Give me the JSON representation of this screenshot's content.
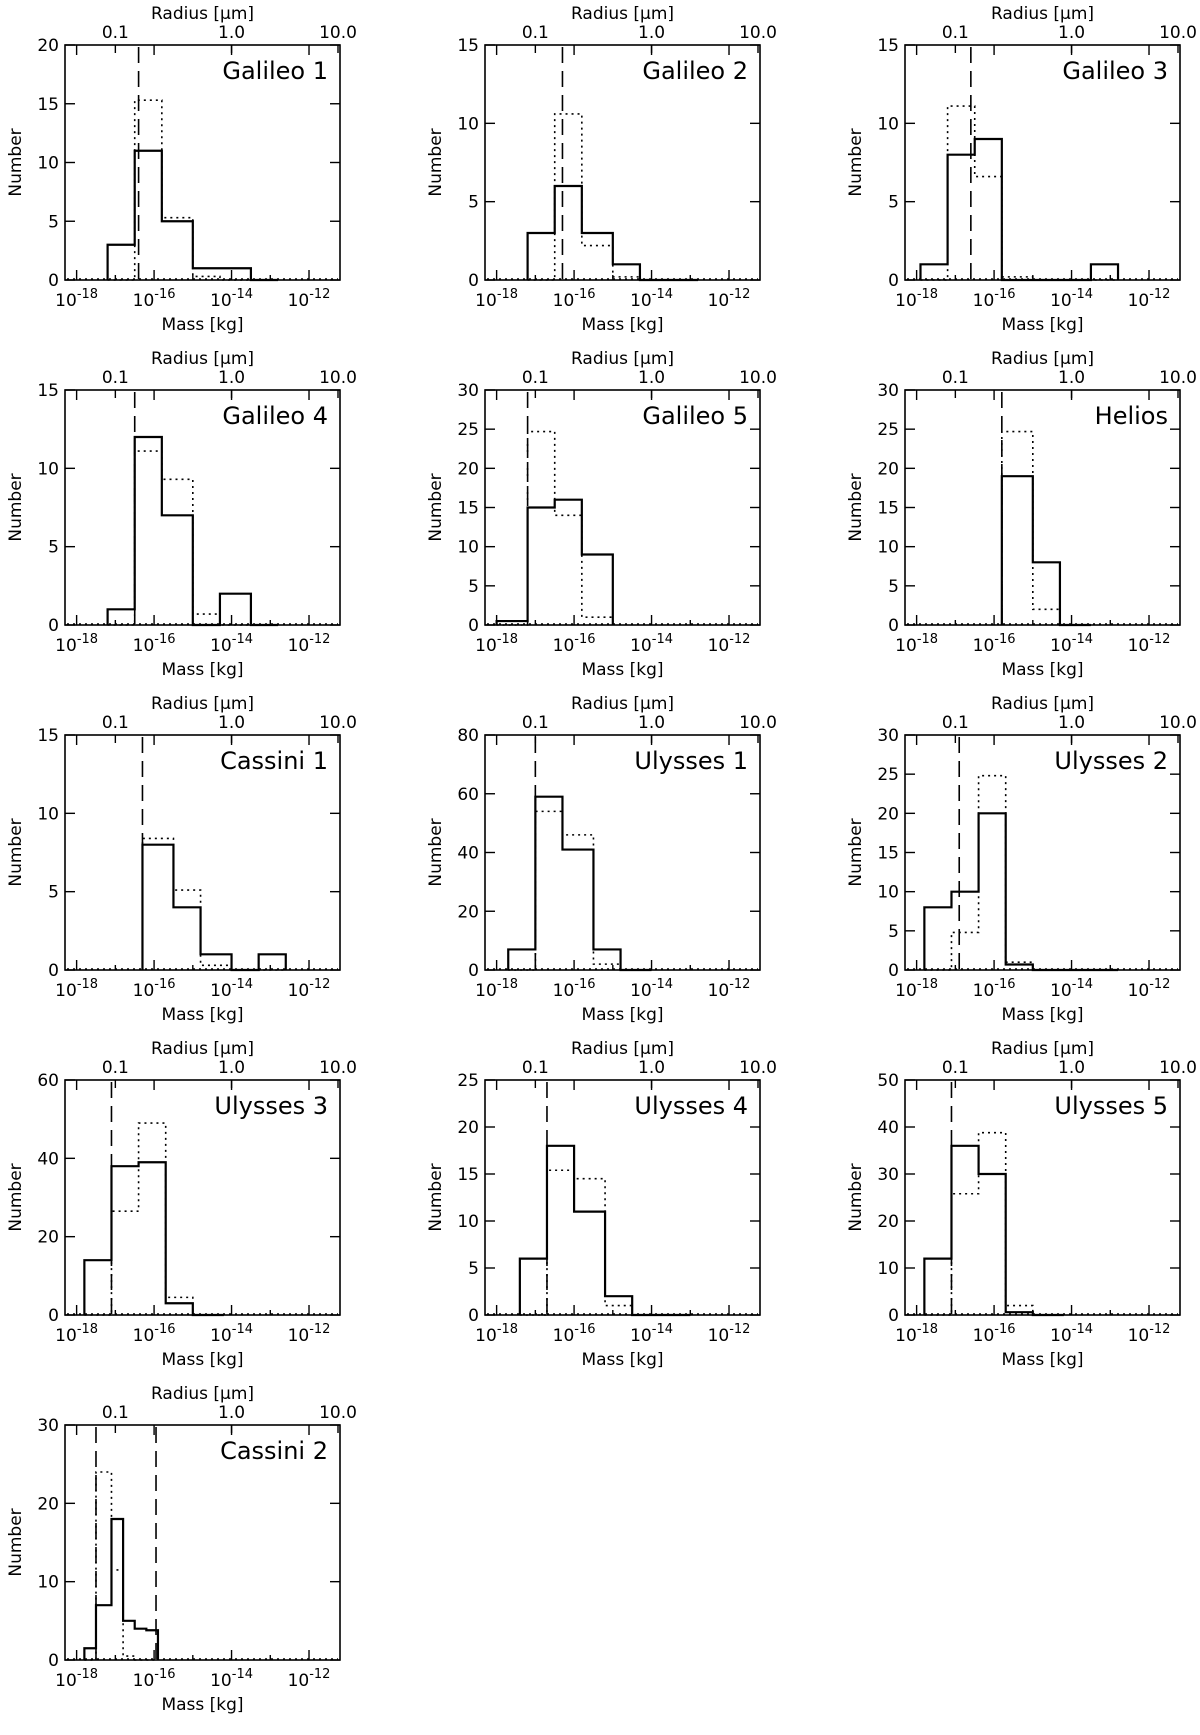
{
  "chart_data": [
    {
      "type": "histogram",
      "title": "Galileo 1",
      "ylim": [
        0,
        20
      ],
      "yticks": [
        0,
        5,
        10,
        15,
        20
      ],
      "xlabel": "Mass [kg]",
      "ylabel": "Number",
      "x2label": "Radius [μm]",
      "xticks": [
        "10^-18",
        "10^-16",
        "10^-14",
        "10^-12"
      ],
      "x2ticks": [
        "0.1",
        "1.0",
        "10.0"
      ],
      "edges": [
        -17.2,
        -16.5,
        -15.8,
        -15.0,
        -14.3,
        -13.5,
        -12.8
      ],
      "solid": [
        3,
        11,
        5,
        1,
        1,
        0
      ],
      "dotted": [
        0,
        15.3,
        5.3,
        0.3,
        0,
        0
      ],
      "dashed_lines": [
        -16.4
      ]
    },
    {
      "type": "histogram",
      "title": "Galileo 2",
      "ylim": [
        0,
        15
      ],
      "yticks": [
        0,
        5,
        10,
        15
      ],
      "xlabel": "Mass [kg]",
      "ylabel": "Number",
      "x2label": "Radius [μm]",
      "xticks": [
        "10^-18",
        "10^-16",
        "10^-14",
        "10^-12"
      ],
      "x2ticks": [
        "0.1",
        "1.0",
        "10.0"
      ],
      "edges": [
        -17.2,
        -16.5,
        -15.8,
        -15.0,
        -14.3,
        -13.5,
        -12.8
      ],
      "solid": [
        3,
        6,
        3,
        1,
        0,
        0
      ],
      "dotted": [
        0,
        10.6,
        2.2,
        0.2,
        0,
        0
      ],
      "dashed_lines": [
        -16.3
      ]
    },
    {
      "type": "histogram",
      "title": "Galileo 3",
      "ylim": [
        0,
        15
      ],
      "yticks": [
        0,
        5,
        10,
        15
      ],
      "xlabel": "Mass [kg]",
      "ylabel": "Number",
      "x2label": "Radius [μm]",
      "xticks": [
        "10^-18",
        "10^-16",
        "10^-14",
        "10^-12"
      ],
      "x2ticks": [
        "0.1",
        "1.0",
        "10.0"
      ],
      "edges": [
        -17.9,
        -17.2,
        -16.5,
        -15.8,
        -15.0,
        -14.3,
        -13.5,
        -12.8
      ],
      "solid": [
        1,
        8,
        9,
        0,
        0,
        0,
        1
      ],
      "dotted": [
        0,
        11.1,
        6.6,
        0.2,
        0,
        0,
        0
      ],
      "dashed_lines": [
        -16.6
      ]
    },
    {
      "type": "histogram",
      "title": "Galileo 4",
      "ylim": [
        0,
        15
      ],
      "yticks": [
        0,
        5,
        10,
        15
      ],
      "xlabel": "Mass [kg]",
      "ylabel": "Number",
      "x2label": "Radius [μm]",
      "xticks": [
        "10^-18",
        "10^-16",
        "10^-14",
        "10^-12"
      ],
      "x2ticks": [
        "0.1",
        "1.0",
        "10.0"
      ],
      "edges": [
        -17.2,
        -16.5,
        -15.8,
        -15.0,
        -14.3,
        -13.5,
        -12.8
      ],
      "solid": [
        1,
        12,
        7,
        0,
        2,
        0
      ],
      "dotted": [
        0,
        11.1,
        9.3,
        0.7,
        0,
        0
      ],
      "dashed_lines": [
        -16.5
      ]
    },
    {
      "type": "histogram",
      "title": "Galileo 5",
      "ylim": [
        0,
        30
      ],
      "yticks": [
        0,
        5,
        10,
        15,
        20,
        25,
        30
      ],
      "xlabel": "Mass [kg]",
      "ylabel": "Number",
      "x2label": "Radius [μm]",
      "xticks": [
        "10^-18",
        "10^-16",
        "10^-14",
        "10^-12"
      ],
      "x2ticks": [
        "0.1",
        "1.0",
        "10.0"
      ],
      "edges": [
        -18.0,
        -17.2,
        -16.5,
        -15.8,
        -15.0
      ],
      "solid": [
        0.5,
        15,
        16,
        9
      ],
      "dotted": [
        0,
        24.7,
        14,
        1
      ],
      "dashed_lines": [
        -17.2
      ]
    },
    {
      "type": "histogram",
      "title": "Helios",
      "ylim": [
        0,
        30
      ],
      "yticks": [
        0,
        5,
        10,
        15,
        20,
        25,
        30
      ],
      "xlabel": "Mass [kg]",
      "ylabel": "Number",
      "x2label": "Radius [μm]",
      "xticks": [
        "10^-18",
        "10^-16",
        "10^-14",
        "10^-12"
      ],
      "x2ticks": [
        "0.1",
        "1.0",
        "10.0"
      ],
      "edges": [
        -15.8,
        -15.0,
        -14.3,
        -13.5
      ],
      "solid": [
        19,
        8,
        0
      ],
      "dotted": [
        24.7,
        2,
        0
      ],
      "dashed_lines": [
        -15.8
      ]
    },
    {
      "type": "histogram",
      "title": "Cassini 1",
      "ylim": [
        0,
        15
      ],
      "yticks": [
        0,
        5,
        10,
        15
      ],
      "xlabel": "Mass [kg]",
      "ylabel": "Number",
      "x2label": "Radius [μm]",
      "xticks": [
        "10^-18",
        "10^-16",
        "10^-14",
        "10^-12"
      ],
      "x2ticks": [
        "0.1",
        "1.0",
        "10.0"
      ],
      "edges": [
        -16.3,
        -15.5,
        -14.8,
        -14.0,
        -13.3,
        -12.6
      ],
      "solid": [
        8,
        4,
        1,
        0,
        1
      ],
      "dotted": [
        8.4,
        5.1,
        0.3,
        0,
        0
      ],
      "dashed_lines": [
        -16.3
      ]
    },
    {
      "type": "histogram",
      "title": "Ulysses 1",
      "ylim": [
        0,
        80
      ],
      "yticks": [
        0,
        20,
        40,
        60,
        80
      ],
      "xlabel": "Mass [kg]",
      "ylabel": "Number",
      "x2label": "Radius [μm]",
      "xticks": [
        "10^-18",
        "10^-16",
        "10^-14",
        "10^-12"
      ],
      "x2ticks": [
        "0.1",
        "1.0",
        "10.0"
      ],
      "edges": [
        -17.7,
        -17.0,
        -16.3,
        -15.5,
        -14.8,
        -14.0
      ],
      "solid": [
        7,
        59,
        41,
        7,
        0
      ],
      "dotted": [
        0,
        54,
        46,
        2,
        0
      ],
      "dashed_lines": [
        -17.0
      ]
    },
    {
      "type": "histogram",
      "title": "Ulysses 2",
      "ylim": [
        0,
        30
      ],
      "yticks": [
        0,
        5,
        10,
        15,
        20,
        25,
        30
      ],
      "xlabel": "Mass [kg]",
      "ylabel": "Number",
      "x2label": "Radius [μm]",
      "xticks": [
        "10^-18",
        "10^-16",
        "10^-14",
        "10^-12"
      ],
      "x2ticks": [
        "0.1",
        "1.0",
        "10.0"
      ],
      "edges": [
        -17.8,
        -17.1,
        -16.4,
        -15.7,
        -15.0,
        -14.2,
        -13.5,
        -12.8
      ],
      "solid": [
        8,
        10,
        20,
        0.7,
        0,
        0,
        0
      ],
      "dotted": [
        0,
        4.8,
        24.8,
        1,
        0,
        0,
        0
      ],
      "dashed_lines": [
        -16.9
      ]
    },
    {
      "type": "histogram",
      "title": "Ulysses 3",
      "ylim": [
        0,
        60
      ],
      "yticks": [
        0,
        20,
        40,
        60
      ],
      "xlabel": "Mass [kg]",
      "ylabel": "Number",
      "x2label": "Radius [μm]",
      "xticks": [
        "10^-18",
        "10^-16",
        "10^-14",
        "10^-12"
      ],
      "x2ticks": [
        "0.1",
        "1.0",
        "10.0"
      ],
      "edges": [
        -17.8,
        -17.1,
        -16.4,
        -15.7,
        -15.0,
        -14.2
      ],
      "solid": [
        14,
        38,
        39,
        3,
        0
      ],
      "dotted": [
        0,
        26.5,
        49,
        4.5,
        0
      ],
      "dashed_lines": [
        -17.1
      ]
    },
    {
      "type": "histogram",
      "title": "Ulysses 4",
      "ylim": [
        0,
        25
      ],
      "yticks": [
        0,
        5,
        10,
        15,
        20,
        25
      ],
      "xlabel": "Mass [kg]",
      "ylabel": "Number",
      "x2label": "Radius [μm]",
      "xticks": [
        "10^-18",
        "10^-16",
        "10^-14",
        "10^-12"
      ],
      "x2ticks": [
        "0.1",
        "1.0",
        "10.0"
      ],
      "edges": [
        -17.4,
        -16.7,
        -16.0,
        -15.2,
        -14.5,
        -13.8,
        -13.0
      ],
      "solid": [
        6,
        18,
        11,
        2,
        0,
        0
      ],
      "dotted": [
        0,
        15.4,
        14.5,
        1,
        0,
        0
      ],
      "dashed_lines": [
        -16.7
      ]
    },
    {
      "type": "histogram",
      "title": "Ulysses 5",
      "ylim": [
        0,
        50
      ],
      "yticks": [
        0,
        10,
        20,
        30,
        40,
        50
      ],
      "xlabel": "Mass [kg]",
      "ylabel": "Number",
      "x2label": "Radius [μm]",
      "xticks": [
        "10^-18",
        "10^-16",
        "10^-14",
        "10^-12"
      ],
      "x2ticks": [
        "0.1",
        "1.0",
        "10.0"
      ],
      "edges": [
        -17.8,
        -17.1,
        -16.4,
        -15.7,
        -15.0,
        -14.2
      ],
      "solid": [
        12,
        36,
        30,
        0.6,
        0
      ],
      "dotted": [
        0,
        25.8,
        38.8,
        2,
        0
      ],
      "dashed_lines": [
        -17.1
      ]
    },
    {
      "type": "histogram",
      "title": "Cassini 2",
      "ylim": [
        0,
        30
      ],
      "yticks": [
        0,
        10,
        20,
        30
      ],
      "xlabel": "Mass [kg]",
      "ylabel": "Number",
      "x2label": "Radius [μm]",
      "xticks": [
        "10^-18",
        "10^-16",
        "10^-14",
        "10^-12"
      ],
      "x2ticks": [
        "0.1",
        "1.0",
        "10.0"
      ],
      "edges": [
        -17.8,
        -17.5,
        -17.1,
        -16.8,
        -16.5,
        -16.2,
        -15.9
      ],
      "solid": [
        1.5,
        7,
        18,
        5,
        4,
        3.8
      ],
      "dotted": [
        0,
        24,
        11.5,
        0.5,
        0,
        0
      ],
      "dashed_lines": [
        -17.5,
        -15.95
      ]
    }
  ]
}
